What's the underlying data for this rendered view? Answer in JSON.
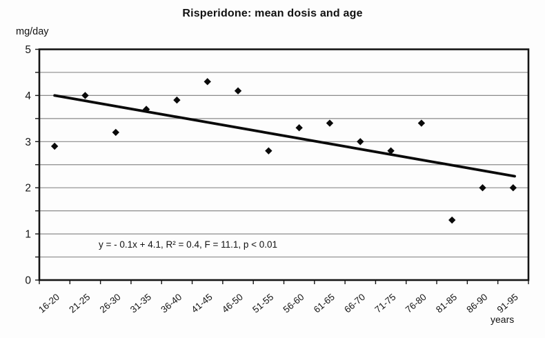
{
  "chart_data": {
    "type": "scatter",
    "title": "Risperidone: mean dosis and age",
    "ylabel": "mg/day",
    "xlabel": "years",
    "categories": [
      "16-20",
      "21-25",
      "26-30",
      "31-35",
      "36-40",
      "41-45",
      "46-50",
      "51-55",
      "56-60",
      "61-65",
      "66-70",
      "71-75",
      "76-80",
      "81-85",
      "86-90",
      "91-95"
    ],
    "values": [
      2.9,
      4.0,
      3.2,
      3.7,
      3.9,
      4.3,
      4.1,
      2.8,
      3.3,
      3.4,
      3.0,
      2.8,
      3.4,
      1.3,
      2.0,
      2.0
    ],
    "ylim": [
      0,
      5
    ],
    "ytick_labels": [
      "0",
      "1",
      "2",
      "3",
      "4",
      "5"
    ],
    "gridline_step": 0.5,
    "grid": true,
    "legend": "none",
    "marker": "diamond",
    "annotation": "y = - 0.1x + 4.1, R² = 0.4, F = 11.1, p < 0.01",
    "trendline": {
      "x1_category": 1,
      "y1": 4.0,
      "x2_category": 16.05,
      "y2": 2.25
    },
    "colors": {
      "marker": "#0a0a0a",
      "trendline": "#0a0a0a",
      "gridline": "#8a8a8a",
      "axis": "#141414",
      "text": "#141414",
      "background": "#fdfdfd"
    }
  }
}
